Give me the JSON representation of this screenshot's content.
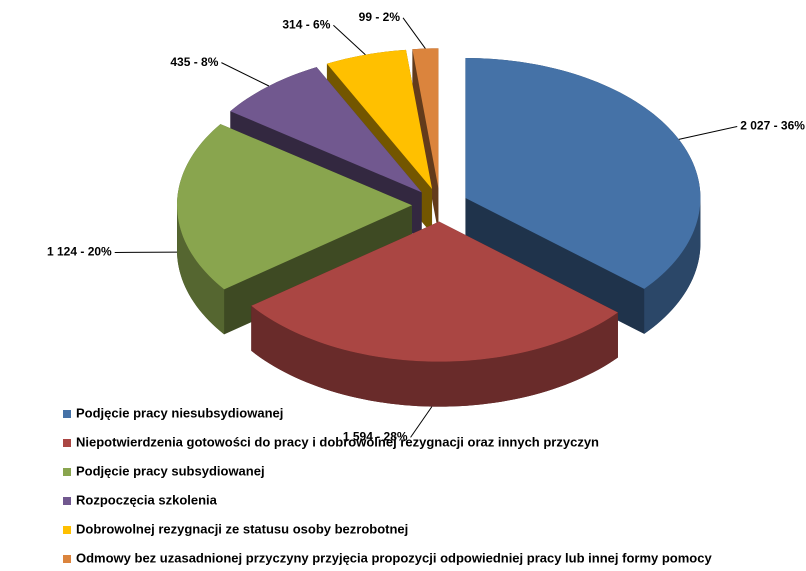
{
  "chart_data": {
    "type": "pie",
    "categories": [
      "Podjęcie pracy niesubsydiowanej",
      "Niepotwierdzenia gotowości do pracy i dobrowolnej rezygnacji oraz innych przyczyn",
      "Podjęcie pracy subsydiowanej",
      "Rozpoczęcia szkolenia",
      "Dobrowolnej rezygnacji ze statusu osoby bezrobotnej",
      "Odmowy bez uzasadnionej przyczyny przyjęcia propozycji odpowiedniej pracy lub innej formy pomocy"
    ],
    "values": [
      2027,
      1594,
      1124,
      435,
      314,
      99
    ],
    "value_labels": [
      "2 027 - 36%",
      "1 594 - 28%",
      "1 124 - 20%",
      "435 - 8%",
      "314 - 6%",
      "99 - 2%"
    ],
    "colors": [
      "#4572a7",
      "#aa4643",
      "#89a54e",
      "#71588f",
      "#ffc000",
      "#db843d"
    ],
    "legend": "bottom"
  }
}
